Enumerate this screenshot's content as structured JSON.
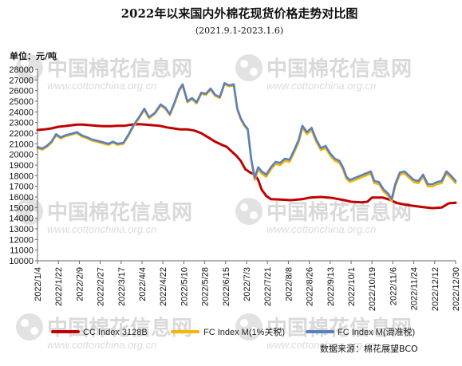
{
  "chart_data": {
    "type": "line",
    "title": "2022年以来国内外棉花现货价格走势对比图",
    "subtitle": "(2021.9.1-2023.1.6)",
    "ylabel": "单位：元/吨",
    "ylim": [
      10000,
      28000
    ],
    "yticks": [
      10000,
      11000,
      12000,
      13000,
      14000,
      15000,
      16000,
      17000,
      18000,
      19000,
      20000,
      21000,
      22000,
      23000,
      24000,
      25000,
      26000,
      27000,
      28000
    ],
    "xlim": [
      "2022-01-04",
      "2022-12-30"
    ],
    "xticks": [
      "2022/1/4",
      "2022/1/22",
      "2022/2/9",
      "2022/2/27",
      "2022/3/17",
      "2022/4/4",
      "2022/4/22",
      "2022/5/10",
      "2022/5/28",
      "2022/6/15",
      "2022/7/3",
      "2022/7/21",
      "2022/8/8",
      "2022/8/26",
      "2022/9/13",
      "2022/10/1",
      "2022/10/19",
      "2022/11/6",
      "2022/11/24",
      "2022/12/12",
      "2022/12/30"
    ],
    "grid": false,
    "legend_position": "bottom",
    "series": [
      {
        "name": "CC Index 3128B",
        "color": "#c00000",
        "points": [
          [
            "2022-01-04",
            22300
          ],
          [
            "2022-01-10",
            22350
          ],
          [
            "2022-01-16",
            22450
          ],
          [
            "2022-01-22",
            22600
          ],
          [
            "2022-01-27",
            22650
          ],
          [
            "2022-02-07",
            22800
          ],
          [
            "2022-02-12",
            22800
          ],
          [
            "2022-02-18",
            22750
          ],
          [
            "2022-02-24",
            22700
          ],
          [
            "2022-03-02",
            22650
          ],
          [
            "2022-03-08",
            22650
          ],
          [
            "2022-03-14",
            22700
          ],
          [
            "2022-03-20",
            22700
          ],
          [
            "2022-03-26",
            22800
          ],
          [
            "2022-04-01",
            22850
          ],
          [
            "2022-04-07",
            22800
          ],
          [
            "2022-04-13",
            22750
          ],
          [
            "2022-04-19",
            22700
          ],
          [
            "2022-04-25",
            22550
          ],
          [
            "2022-05-01",
            22450
          ],
          [
            "2022-05-07",
            22350
          ],
          [
            "2022-05-13",
            22350
          ],
          [
            "2022-05-19",
            22250
          ],
          [
            "2022-05-25",
            22000
          ],
          [
            "2022-05-31",
            21600
          ],
          [
            "2022-06-06",
            21200
          ],
          [
            "2022-06-12",
            20900
          ],
          [
            "2022-06-16",
            20700
          ],
          [
            "2022-06-20",
            20300
          ],
          [
            "2022-06-24",
            19900
          ],
          [
            "2022-06-28",
            19400
          ],
          [
            "2022-07-02",
            18600
          ],
          [
            "2022-07-06",
            18300
          ],
          [
            "2022-07-10",
            18100
          ],
          [
            "2022-07-13",
            17600
          ],
          [
            "2022-07-16",
            16700
          ],
          [
            "2022-07-20",
            16100
          ],
          [
            "2022-07-24",
            15800
          ],
          [
            "2022-08-01",
            15750
          ],
          [
            "2022-08-10",
            15700
          ],
          [
            "2022-08-20",
            15800
          ],
          [
            "2022-08-27",
            15950
          ],
          [
            "2022-09-05",
            16000
          ],
          [
            "2022-09-15",
            15900
          ],
          [
            "2022-09-25",
            15700
          ],
          [
            "2022-10-01",
            15550
          ],
          [
            "2022-10-10",
            15500
          ],
          [
            "2022-10-15",
            15550
          ],
          [
            "2022-10-19",
            15950
          ],
          [
            "2022-10-28",
            15950
          ],
          [
            "2022-11-03",
            15750
          ],
          [
            "2022-11-09",
            15450
          ],
          [
            "2022-11-15",
            15300
          ],
          [
            "2022-11-24",
            15150
          ],
          [
            "2022-12-02",
            15050
          ],
          [
            "2022-12-10",
            14950
          ],
          [
            "2022-12-18",
            15000
          ],
          [
            "2022-12-24",
            15400
          ],
          [
            "2022-12-30",
            15450
          ]
        ]
      },
      {
        "name": "FC Index M(1%关税)",
        "color": "#f5b800",
        "points": [
          [
            "2022-01-04",
            20600
          ],
          [
            "2022-01-08",
            20450
          ],
          [
            "2022-01-12",
            20700
          ],
          [
            "2022-01-16",
            21100
          ],
          [
            "2022-01-20",
            21800
          ],
          [
            "2022-01-24",
            21500
          ],
          [
            "2022-01-28",
            21700
          ],
          [
            "2022-02-07",
            22000
          ],
          [
            "2022-02-11",
            21700
          ],
          [
            "2022-02-16",
            21500
          ],
          [
            "2022-02-20",
            21300
          ],
          [
            "2022-02-24",
            21200
          ],
          [
            "2022-03-01",
            21050
          ],
          [
            "2022-03-06",
            20900
          ],
          [
            "2022-03-10",
            21100
          ],
          [
            "2022-03-14",
            20900
          ],
          [
            "2022-03-19",
            21000
          ],
          [
            "2022-03-23",
            21700
          ],
          [
            "2022-03-28",
            22700
          ],
          [
            "2022-04-02",
            23500
          ],
          [
            "2022-04-06",
            24200
          ],
          [
            "2022-04-10",
            23400
          ],
          [
            "2022-04-15",
            23800
          ],
          [
            "2022-04-20",
            24600
          ],
          [
            "2022-04-24",
            24300
          ],
          [
            "2022-04-28",
            23700
          ],
          [
            "2022-05-02",
            24800
          ],
          [
            "2022-05-06",
            26000
          ],
          [
            "2022-05-09",
            26500
          ],
          [
            "2022-05-13",
            24900
          ],
          [
            "2022-05-17",
            25200
          ],
          [
            "2022-05-21",
            24800
          ],
          [
            "2022-05-25",
            25700
          ],
          [
            "2022-05-29",
            25600
          ],
          [
            "2022-06-02",
            26100
          ],
          [
            "2022-06-06",
            25500
          ],
          [
            "2022-06-10",
            25300
          ],
          [
            "2022-06-14",
            26600
          ],
          [
            "2022-06-18",
            26400
          ],
          [
            "2022-06-22",
            26500
          ],
          [
            "2022-06-25",
            24200
          ],
          [
            "2022-06-28",
            23300
          ],
          [
            "2022-07-01",
            22700
          ],
          [
            "2022-07-04",
            22300
          ],
          [
            "2022-07-07",
            19500
          ],
          [
            "2022-07-10",
            17600
          ],
          [
            "2022-07-13",
            18600
          ],
          [
            "2022-07-16",
            18200
          ],
          [
            "2022-07-20",
            17900
          ],
          [
            "2022-07-24",
            18600
          ],
          [
            "2022-07-28",
            19100
          ],
          [
            "2022-08-01",
            19000
          ],
          [
            "2022-08-05",
            19400
          ],
          [
            "2022-08-09",
            19300
          ],
          [
            "2022-08-13",
            20200
          ],
          [
            "2022-08-17",
            21200
          ],
          [
            "2022-08-20",
            22500
          ],
          [
            "2022-08-24",
            21900
          ],
          [
            "2022-08-28",
            22300
          ],
          [
            "2022-09-01",
            21200
          ],
          [
            "2022-09-05",
            20400
          ],
          [
            "2022-09-09",
            20600
          ],
          [
            "2022-09-13",
            19900
          ],
          [
            "2022-09-17",
            19400
          ],
          [
            "2022-09-21",
            19200
          ],
          [
            "2022-09-24",
            18600
          ],
          [
            "2022-09-27",
            17700
          ],
          [
            "2022-09-30",
            17400
          ],
          [
            "2022-10-18",
            18200
          ],
          [
            "2022-10-21",
            17300
          ],
          [
            "2022-10-25",
            17200
          ],
          [
            "2022-10-29",
            16500
          ],
          [
            "2022-11-02",
            16100
          ],
          [
            "2022-11-05",
            15600
          ],
          [
            "2022-11-08",
            17000
          ],
          [
            "2022-11-12",
            18100
          ],
          [
            "2022-11-16",
            18200
          ],
          [
            "2022-11-20",
            17800
          ],
          [
            "2022-11-24",
            17400
          ],
          [
            "2022-11-28",
            17300
          ],
          [
            "2022-12-02",
            17900
          ],
          [
            "2022-12-06",
            17000
          ],
          [
            "2022-12-10",
            17000
          ],
          [
            "2022-12-14",
            17200
          ],
          [
            "2022-12-18",
            17300
          ],
          [
            "2022-12-22",
            18200
          ],
          [
            "2022-12-26",
            17800
          ],
          [
            "2022-12-30",
            17300
          ]
        ]
      },
      {
        "name": "FC Index M(滑准税)",
        "color": "#5b7fbf",
        "points": [
          [
            "2022-01-04",
            20700
          ],
          [
            "2022-01-08",
            20550
          ],
          [
            "2022-01-12",
            20800
          ],
          [
            "2022-01-16",
            21200
          ],
          [
            "2022-01-20",
            21900
          ],
          [
            "2022-01-24",
            21600
          ],
          [
            "2022-01-28",
            21800
          ],
          [
            "2022-02-07",
            22100
          ],
          [
            "2022-02-11",
            21800
          ],
          [
            "2022-02-16",
            21600
          ],
          [
            "2022-02-20",
            21400
          ],
          [
            "2022-02-24",
            21300
          ],
          [
            "2022-03-01",
            21150
          ],
          [
            "2022-03-06",
            21000
          ],
          [
            "2022-03-10",
            21200
          ],
          [
            "2022-03-14",
            21000
          ],
          [
            "2022-03-19",
            21100
          ],
          [
            "2022-03-23",
            21800
          ],
          [
            "2022-03-28",
            22800
          ],
          [
            "2022-04-02",
            23600
          ],
          [
            "2022-04-06",
            24300
          ],
          [
            "2022-04-10",
            23500
          ],
          [
            "2022-04-15",
            23900
          ],
          [
            "2022-04-20",
            24700
          ],
          [
            "2022-04-24",
            24400
          ],
          [
            "2022-04-28",
            23800
          ],
          [
            "2022-05-02",
            24900
          ],
          [
            "2022-05-06",
            26100
          ],
          [
            "2022-05-09",
            26600
          ],
          [
            "2022-05-13",
            25000
          ],
          [
            "2022-05-17",
            25300
          ],
          [
            "2022-05-21",
            24900
          ],
          [
            "2022-05-25",
            25800
          ],
          [
            "2022-05-29",
            25700
          ],
          [
            "2022-06-02",
            26200
          ],
          [
            "2022-06-06",
            25600
          ],
          [
            "2022-06-10",
            25400
          ],
          [
            "2022-06-14",
            26700
          ],
          [
            "2022-06-18",
            26500
          ],
          [
            "2022-06-22",
            26600
          ],
          [
            "2022-06-25",
            24300
          ],
          [
            "2022-06-28",
            23400
          ],
          [
            "2022-07-01",
            22800
          ],
          [
            "2022-07-04",
            22400
          ],
          [
            "2022-07-07",
            19600
          ],
          [
            "2022-07-10",
            17800
          ],
          [
            "2022-07-13",
            18800
          ],
          [
            "2022-07-16",
            18400
          ],
          [
            "2022-07-20",
            18100
          ],
          [
            "2022-07-24",
            18800
          ],
          [
            "2022-07-28",
            19300
          ],
          [
            "2022-08-01",
            19200
          ],
          [
            "2022-08-05",
            19600
          ],
          [
            "2022-08-09",
            19500
          ],
          [
            "2022-08-13",
            20400
          ],
          [
            "2022-08-17",
            21400
          ],
          [
            "2022-08-20",
            22700
          ],
          [
            "2022-08-24",
            22100
          ],
          [
            "2022-08-28",
            22500
          ],
          [
            "2022-09-01",
            21400
          ],
          [
            "2022-09-05",
            20600
          ],
          [
            "2022-09-09",
            20800
          ],
          [
            "2022-09-13",
            20100
          ],
          [
            "2022-09-17",
            19600
          ],
          [
            "2022-09-21",
            19400
          ],
          [
            "2022-09-24",
            18800
          ],
          [
            "2022-09-27",
            17900
          ],
          [
            "2022-09-30",
            17600
          ],
          [
            "2022-10-18",
            18400
          ],
          [
            "2022-10-21",
            17500
          ],
          [
            "2022-10-25",
            17400
          ],
          [
            "2022-10-29",
            16700
          ],
          [
            "2022-11-02",
            16300
          ],
          [
            "2022-11-05",
            15800
          ],
          [
            "2022-11-08",
            17200
          ],
          [
            "2022-11-12",
            18300
          ],
          [
            "2022-11-16",
            18400
          ],
          [
            "2022-11-20",
            18000
          ],
          [
            "2022-11-24",
            17600
          ],
          [
            "2022-11-28",
            17500
          ],
          [
            "2022-12-02",
            18100
          ],
          [
            "2022-12-06",
            17200
          ],
          [
            "2022-12-10",
            17200
          ],
          [
            "2022-12-14",
            17400
          ],
          [
            "2022-12-18",
            17500
          ],
          [
            "2022-12-22",
            18400
          ],
          [
            "2022-12-26",
            18000
          ],
          [
            "2022-12-30",
            17500
          ]
        ]
      }
    ]
  },
  "source_label": "数据来源：棉花展望BCO",
  "watermark": {
    "cn": "中国棉花信息网",
    "en": "www.cottonchina.org.cn"
  }
}
